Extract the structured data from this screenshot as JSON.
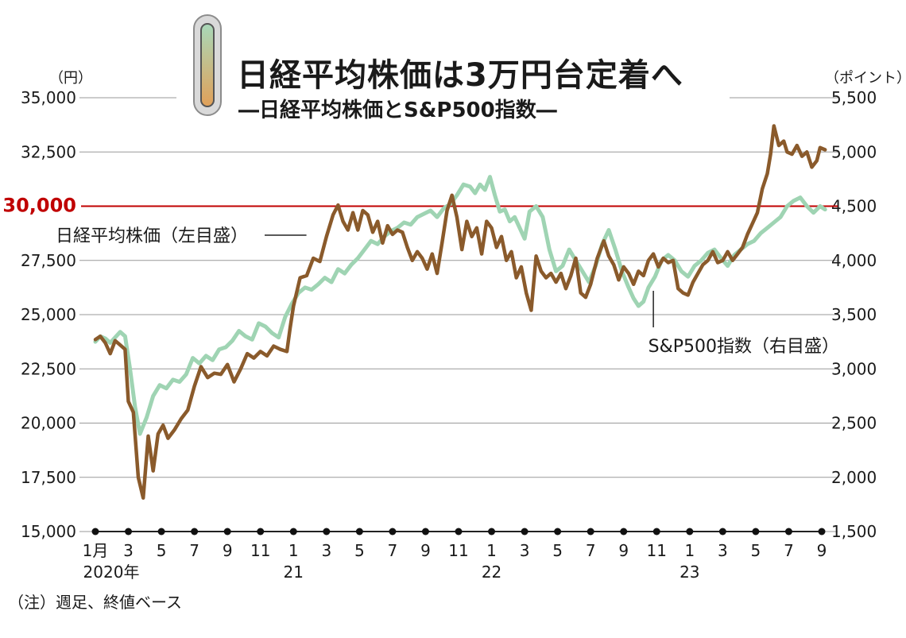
{
  "title": "日経平均株価は3万円台定着へ",
  "subtitle": "―日経平均株価とS&P500指数―",
  "unit_left": "（円）",
  "unit_right": "（ポイント）",
  "note": "（注）週足、終値ベース",
  "colors": {
    "nikkei": "#8a5a2b",
    "sp500": "#9fd4b3",
    "ref_line": "#c00000",
    "grid": "#999999"
  },
  "chart_data": {
    "type": "line",
    "x_ticks": [
      "1月",
      "3",
      "5",
      "7",
      "9",
      "11",
      "1",
      "3",
      "5",
      "7",
      "9",
      "11",
      "1",
      "3",
      "5",
      "7",
      "9",
      "11",
      "1",
      "3",
      "5",
      "7",
      "9"
    ],
    "year_labels": [
      {
        "label": "2020年",
        "tick_index": 0
      },
      {
        "label": "21",
        "tick_index": 6
      },
      {
        "label": "22",
        "tick_index": 12
      },
      {
        "label": "23",
        "tick_index": 18
      }
    ],
    "y_left": {
      "ticks": [
        "15,000",
        "17,500",
        "20,000",
        "22,500",
        "25,000",
        "27,500",
        "30,000",
        "32,500",
        "35,000"
      ],
      "min": 15000,
      "max": 35000
    },
    "y_right": {
      "ticks": [
        "1,500",
        "2,000",
        "2,500",
        "3,000",
        "3,500",
        "4,000",
        "4,500",
        "5,000",
        "5,500"
      ],
      "min": 1500,
      "max": 5500
    },
    "reference_line": {
      "axis": "left",
      "value": 30000,
      "label": "30,000"
    },
    "series": [
      {
        "name": "日経平均株価（左目盛）",
        "axis": "left",
        "points": [
          [
            0,
            23850
          ],
          [
            0.15,
            24000
          ],
          [
            0.3,
            23700
          ],
          [
            0.45,
            23200
          ],
          [
            0.6,
            23800
          ],
          [
            0.75,
            23600
          ],
          [
            0.9,
            23400
          ],
          [
            1.0,
            21000
          ],
          [
            1.15,
            20500
          ],
          [
            1.3,
            17500
          ],
          [
            1.45,
            16550
          ],
          [
            1.6,
            19400
          ],
          [
            1.75,
            17800
          ],
          [
            1.9,
            19500
          ],
          [
            2.05,
            19900
          ],
          [
            2.2,
            19300
          ],
          [
            2.4,
            19700
          ],
          [
            2.6,
            20200
          ],
          [
            2.8,
            20600
          ],
          [
            3.0,
            21700
          ],
          [
            3.2,
            22600
          ],
          [
            3.4,
            22100
          ],
          [
            3.6,
            22300
          ],
          [
            3.8,
            22250
          ],
          [
            4.0,
            22700
          ],
          [
            4.2,
            21900
          ],
          [
            4.4,
            22500
          ],
          [
            4.6,
            23200
          ],
          [
            4.8,
            23000
          ],
          [
            5.0,
            23300
          ],
          [
            5.2,
            23100
          ],
          [
            5.4,
            23550
          ],
          [
            5.6,
            23400
          ],
          [
            5.8,
            23300
          ],
          [
            5.9,
            24400
          ],
          [
            6.0,
            25400
          ],
          [
            6.2,
            26700
          ],
          [
            6.4,
            26800
          ],
          [
            6.6,
            27600
          ],
          [
            6.8,
            27450
          ],
          [
            7.0,
            28600
          ],
          [
            7.2,
            29600
          ],
          [
            7.35,
            30050
          ],
          [
            7.5,
            29300
          ],
          [
            7.65,
            28900
          ],
          [
            7.8,
            29700
          ],
          [
            7.95,
            28900
          ],
          [
            8.1,
            29800
          ],
          [
            8.25,
            29600
          ],
          [
            8.4,
            28800
          ],
          [
            8.55,
            29300
          ],
          [
            8.7,
            28300
          ],
          [
            8.85,
            29100
          ],
          [
            9.0,
            28700
          ],
          [
            9.15,
            28900
          ],
          [
            9.3,
            28800
          ],
          [
            9.45,
            28100
          ],
          [
            9.6,
            27500
          ],
          [
            9.75,
            27900
          ],
          [
            9.9,
            27600
          ],
          [
            10.05,
            27100
          ],
          [
            10.2,
            27800
          ],
          [
            10.35,
            26900
          ],
          [
            10.5,
            28300
          ],
          [
            10.65,
            29800
          ],
          [
            10.8,
            30500
          ],
          [
            10.95,
            29500
          ],
          [
            11.1,
            28000
          ],
          [
            11.25,
            29300
          ],
          [
            11.4,
            28600
          ],
          [
            11.55,
            29000
          ],
          [
            11.7,
            27800
          ],
          [
            11.85,
            29300
          ],
          [
            12.0,
            29000
          ],
          [
            12.15,
            28100
          ],
          [
            12.3,
            28600
          ],
          [
            12.45,
            27500
          ],
          [
            12.6,
            27900
          ],
          [
            12.75,
            26700
          ],
          [
            12.9,
            27200
          ],
          [
            13.05,
            26000
          ],
          [
            13.2,
            25200
          ],
          [
            13.35,
            27700
          ],
          [
            13.5,
            27000
          ],
          [
            13.65,
            26700
          ],
          [
            13.8,
            26900
          ],
          [
            13.95,
            26500
          ],
          [
            14.1,
            26900
          ],
          [
            14.25,
            26200
          ],
          [
            14.4,
            26800
          ],
          [
            14.55,
            27600
          ],
          [
            14.7,
            26000
          ],
          [
            14.85,
            25800
          ],
          [
            15.0,
            26400
          ],
          [
            15.2,
            27600
          ],
          [
            15.4,
            28400
          ],
          [
            15.55,
            27700
          ],
          [
            15.7,
            27300
          ],
          [
            15.85,
            26600
          ],
          [
            16.0,
            27200
          ],
          [
            16.15,
            26900
          ],
          [
            16.3,
            26400
          ],
          [
            16.45,
            27000
          ],
          [
            16.6,
            26800
          ],
          [
            16.75,
            27500
          ],
          [
            16.9,
            27800
          ],
          [
            17.05,
            27200
          ],
          [
            17.2,
            27600
          ],
          [
            17.35,
            27400
          ],
          [
            17.5,
            27500
          ],
          [
            17.65,
            26200
          ],
          [
            17.8,
            26000
          ],
          [
            17.95,
            25900
          ],
          [
            18.1,
            26500
          ],
          [
            18.25,
            26900
          ],
          [
            18.4,
            27300
          ],
          [
            18.55,
            27500
          ],
          [
            18.7,
            27900
          ],
          [
            18.85,
            27400
          ],
          [
            19.0,
            27500
          ],
          [
            19.15,
            27900
          ],
          [
            19.3,
            27500
          ],
          [
            19.45,
            27800
          ],
          [
            19.6,
            28100
          ],
          [
            19.75,
            28700
          ],
          [
            19.9,
            29200
          ],
          [
            20.05,
            29700
          ],
          [
            20.2,
            30800
          ],
          [
            20.35,
            31500
          ],
          [
            20.45,
            32400
          ],
          [
            20.55,
            33700
          ],
          [
            20.7,
            32800
          ],
          [
            20.85,
            33000
          ],
          [
            20.95,
            32500
          ],
          [
            21.1,
            32400
          ],
          [
            21.25,
            32800
          ],
          [
            21.4,
            32300
          ],
          [
            21.55,
            32500
          ],
          [
            21.7,
            31800
          ],
          [
            21.85,
            32100
          ],
          [
            21.95,
            32700
          ],
          [
            22.1,
            32600
          ]
        ]
      },
      {
        "name": "S&P500指数（右目盛）",
        "axis": "right",
        "points": [
          [
            0,
            3250
          ],
          [
            0.15,
            3300
          ],
          [
            0.3,
            3280
          ],
          [
            0.45,
            3240
          ],
          [
            0.6,
            3290
          ],
          [
            0.75,
            3340
          ],
          [
            0.9,
            3300
          ],
          [
            1.05,
            3000
          ],
          [
            1.2,
            2650
          ],
          [
            1.35,
            2400
          ],
          [
            1.55,
            2550
          ],
          [
            1.75,
            2750
          ],
          [
            1.95,
            2850
          ],
          [
            2.15,
            2820
          ],
          [
            2.35,
            2900
          ],
          [
            2.55,
            2880
          ],
          [
            2.75,
            2950
          ],
          [
            2.95,
            3100
          ],
          [
            3.15,
            3050
          ],
          [
            3.35,
            3120
          ],
          [
            3.55,
            3080
          ],
          [
            3.75,
            3180
          ],
          [
            3.95,
            3200
          ],
          [
            4.15,
            3260
          ],
          [
            4.35,
            3350
          ],
          [
            4.55,
            3300
          ],
          [
            4.75,
            3270
          ],
          [
            4.95,
            3420
          ],
          [
            5.15,
            3390
          ],
          [
            5.35,
            3330
          ],
          [
            5.55,
            3290
          ],
          [
            5.75,
            3480
          ],
          [
            5.95,
            3600
          ],
          [
            6.15,
            3700
          ],
          [
            6.35,
            3750
          ],
          [
            6.55,
            3730
          ],
          [
            6.75,
            3780
          ],
          [
            6.95,
            3840
          ],
          [
            7.15,
            3800
          ],
          [
            7.35,
            3920
          ],
          [
            7.55,
            3880
          ],
          [
            7.75,
            3960
          ],
          [
            7.95,
            4020
          ],
          [
            8.15,
            4100
          ],
          [
            8.35,
            4180
          ],
          [
            8.55,
            4150
          ],
          [
            8.75,
            4220
          ],
          [
            8.95,
            4270
          ],
          [
            9.15,
            4300
          ],
          [
            9.35,
            4350
          ],
          [
            9.55,
            4330
          ],
          [
            9.75,
            4400
          ],
          [
            9.95,
            4430
          ],
          [
            10.15,
            4460
          ],
          [
            10.35,
            4400
          ],
          [
            10.55,
            4480
          ],
          [
            10.75,
            4520
          ],
          [
            10.95,
            4600
          ],
          [
            11.15,
            4700
          ],
          [
            11.35,
            4680
          ],
          [
            11.5,
            4620
          ],
          [
            11.65,
            4700
          ],
          [
            11.8,
            4650
          ],
          [
            11.95,
            4770
          ],
          [
            12.1,
            4600
          ],
          [
            12.25,
            4450
          ],
          [
            12.4,
            4470
          ],
          [
            12.55,
            4360
          ],
          [
            12.7,
            4400
          ],
          [
            12.85,
            4300
          ],
          [
            13.0,
            4200
          ],
          [
            13.15,
            4450
          ],
          [
            13.35,
            4500
          ],
          [
            13.55,
            4400
          ],
          [
            13.75,
            4100
          ],
          [
            13.95,
            3900
          ],
          [
            14.15,
            3950
          ],
          [
            14.35,
            4100
          ],
          [
            14.55,
            4000
          ],
          [
            14.75,
            3900
          ],
          [
            14.95,
            3800
          ],
          [
            15.15,
            3950
          ],
          [
            15.35,
            4150
          ],
          [
            15.55,
            4280
          ],
          [
            15.75,
            4100
          ],
          [
            15.95,
            3900
          ],
          [
            16.15,
            3750
          ],
          [
            16.3,
            3650
          ],
          [
            16.45,
            3580
          ],
          [
            16.6,
            3620
          ],
          [
            16.75,
            3750
          ],
          [
            16.95,
            3850
          ],
          [
            17.15,
            4000
          ],
          [
            17.35,
            4050
          ],
          [
            17.55,
            4000
          ],
          [
            17.75,
            3900
          ],
          [
            17.95,
            3850
          ],
          [
            18.15,
            3950
          ],
          [
            18.35,
            4000
          ],
          [
            18.55,
            4070
          ],
          [
            18.75,
            4100
          ],
          [
            18.95,
            4020
          ],
          [
            19.15,
            3950
          ],
          [
            19.35,
            4050
          ],
          [
            19.55,
            4100
          ],
          [
            19.75,
            4150
          ],
          [
            19.95,
            4180
          ],
          [
            20.15,
            4250
          ],
          [
            20.35,
            4300
          ],
          [
            20.55,
            4350
          ],
          [
            20.75,
            4400
          ],
          [
            20.95,
            4500
          ],
          [
            21.15,
            4550
          ],
          [
            21.35,
            4580
          ],
          [
            21.55,
            4500
          ],
          [
            21.75,
            4440
          ],
          [
            21.95,
            4500
          ],
          [
            22.1,
            4470
          ]
        ]
      }
    ],
    "annotations": [
      {
        "text": "日経平均株価（左目盛）",
        "series": "日経平均株価（左目盛）",
        "anchor_x": 6.2
      },
      {
        "text": "S&P500指数（右目盛）",
        "series": "S&P500指数（右目盛）",
        "anchor_x": 16.9
      }
    ]
  }
}
